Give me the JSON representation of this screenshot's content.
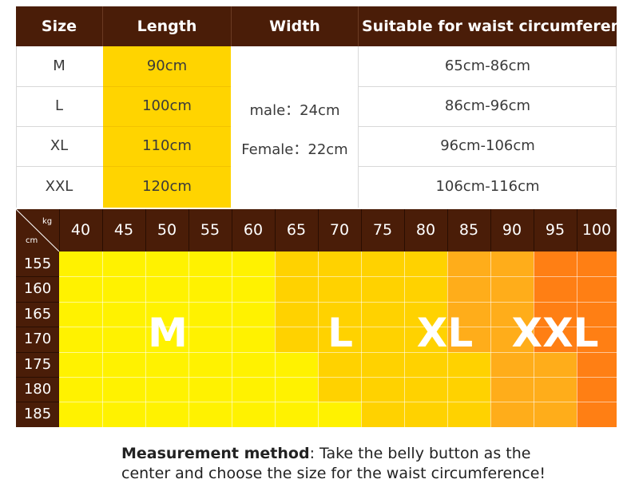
{
  "size_table": {
    "headers": [
      "Size",
      "Length",
      "Width",
      "Suitable for waist circumferenc"
    ],
    "rows": [
      {
        "size": "M",
        "length": "90cm",
        "waist": "65cm-86cm"
      },
      {
        "size": "L",
        "length": "100cm",
        "waist": "86cm-96cm"
      },
      {
        "size": "XL",
        "length": "110cm",
        "waist": "96cm-106cm"
      },
      {
        "size": "XXL",
        "length": "120cm",
        "waist": "106cm-116cm"
      }
    ],
    "width_male": "male：24cm",
    "width_female": "Female：22cm"
  },
  "grid": {
    "kg_unit": "kg",
    "cm_unit": "cm",
    "kg_values": [
      "40",
      "45",
      "50",
      "55",
      "60",
      "65",
      "70",
      "75",
      "80",
      "85",
      "90",
      "95",
      "100"
    ],
    "cm_values": [
      "155",
      "160",
      "165",
      "170",
      "175",
      "180",
      "185"
    ],
    "zones": [
      {
        "label": "M",
        "color": "#fff200"
      },
      {
        "label": "L",
        "color": "#ffd200"
      },
      {
        "label": "XL",
        "color": "#ffad1a"
      },
      {
        "label": "XXL",
        "color": "#ff7f14"
      }
    ]
  },
  "note": {
    "title": "Measurement method",
    "text": ": Take the belly button as the center and choose the size for the waist circumference!"
  },
  "colors": {
    "header_brown": "#4a1d08",
    "length_yellow": "#ffd400"
  }
}
